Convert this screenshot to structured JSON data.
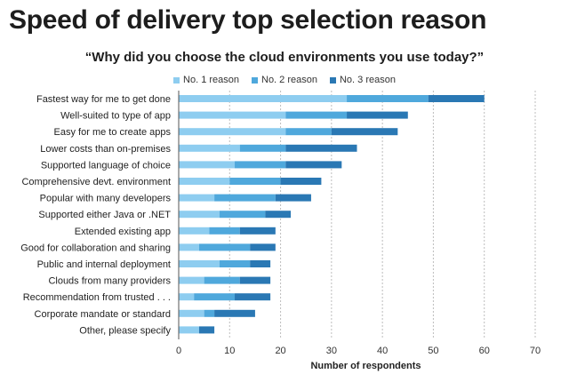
{
  "chart_data": {
    "type": "bar",
    "orientation": "horizontal",
    "stacked": true,
    "title": "Speed of delivery top selection reason",
    "subtitle": "“Why did you choose the cloud environments you use today?”",
    "xlabel": "Number of respondents",
    "ylabel": "",
    "xlim": [
      0,
      70
    ],
    "xticks": [
      0,
      10,
      20,
      30,
      40,
      50,
      60,
      70
    ],
    "grid": "vertical-dashed",
    "legend_position": "top-center",
    "categories": [
      "Fastest way for me to get done",
      "Well-suited to type of app",
      "Easy for me to create apps",
      "Lower costs than on-premises",
      "Supported language of choice",
      "Comprehensive devt. environment",
      "Popular with many developers",
      "Supported either Java or .NET",
      "Extended existing app",
      "Good for collaboration and sharing",
      "Public and internal deployment",
      "Clouds from many providers",
      "Recommendation from trusted . . .",
      "Corporate mandate or standard",
      "Other, please specify"
    ],
    "series": [
      {
        "name": "No. 1 reason",
        "color": "#8ecdf0",
        "values": [
          33,
          21,
          21,
          12,
          11,
          10,
          7,
          8,
          6,
          4,
          8,
          5,
          3,
          5,
          4
        ]
      },
      {
        "name": "No. 2 reason",
        "color": "#4fa8dc",
        "values": [
          16,
          12,
          9,
          9,
          10,
          10,
          12,
          9,
          6,
          10,
          6,
          7,
          8,
          2,
          0
        ]
      },
      {
        "name": "No. 3 reason",
        "color": "#2a78b4",
        "values": [
          11,
          12,
          13,
          14,
          11,
          8,
          7,
          5,
          7,
          5,
          4,
          6,
          7,
          8,
          3
        ]
      }
    ]
  }
}
